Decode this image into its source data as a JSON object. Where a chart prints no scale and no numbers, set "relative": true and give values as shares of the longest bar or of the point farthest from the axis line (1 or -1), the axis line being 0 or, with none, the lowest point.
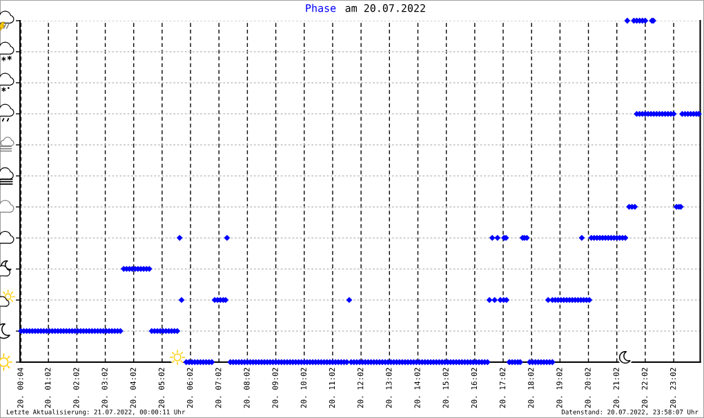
{
  "chart_data": {
    "type": "scatter",
    "title": "am 20.07.2022",
    "relative": true,
    "grid": true,
    "marker": "diamond",
    "xlim": [
      "2022-07-20T00:02",
      "2022-07-20T23:58"
    ],
    "xticks": [
      {
        "value": "2022-07-20T00:04",
        "label": "20. 00:04"
      },
      {
        "value": "2022-07-20T01:02",
        "label": "20. 01:02"
      },
      {
        "value": "2022-07-20T02:02",
        "label": "20. 02:02"
      },
      {
        "value": "2022-07-20T03:02",
        "label": "20. 03:02"
      },
      {
        "value": "2022-07-20T04:02",
        "label": "20. 04:02"
      },
      {
        "value": "2022-07-20T05:02",
        "label": "20. 05:02"
      },
      {
        "value": "2022-07-20T06:02",
        "label": "20. 06:02"
      },
      {
        "value": "2022-07-20T07:02",
        "label": "20. 07:02"
      },
      {
        "value": "2022-07-20T08:02",
        "label": "20. 08:02"
      },
      {
        "value": "2022-07-20T09:02",
        "label": "20. 09:02"
      },
      {
        "value": "2022-07-20T10:02",
        "label": "20. 10:02"
      },
      {
        "value": "2022-07-20T11:02",
        "label": "20. 11:02"
      },
      {
        "value": "2022-07-20T12:02",
        "label": "20. 12:02"
      },
      {
        "value": "2022-07-20T13:02",
        "label": "20. 13:02"
      },
      {
        "value": "2022-07-20T14:02",
        "label": "20. 14:02"
      },
      {
        "value": "2022-07-20T15:02",
        "label": "20. 15:02"
      },
      {
        "value": "2022-07-20T16:02",
        "label": "20. 16:02"
      },
      {
        "value": "2022-07-20T17:02",
        "label": "20. 17:02"
      },
      {
        "value": "2022-07-20T18:02",
        "label": "20. 18:02"
      },
      {
        "value": "2022-07-20T19:02",
        "label": "20. 19:02"
      },
      {
        "value": "2022-07-20T20:02",
        "label": "20. 20:02"
      },
      {
        "value": "2022-07-20T21:02",
        "label": "20. 21:02"
      },
      {
        "value": "2022-07-20T22:02",
        "label": "20. 22:02"
      },
      {
        "value": "2022-07-20T23:02",
        "label": "20. 23:02"
      }
    ],
    "series": [
      {
        "name": "Phase",
        "color": "#0000ff",
        "x": [
          "2022-07-20T00:04",
          "2022-07-20T00:10",
          "2022-07-20T00:16",
          "2022-07-20T00:22",
          "2022-07-20T00:28",
          "2022-07-20T00:34",
          "2022-07-20T00:40",
          "2022-07-20T00:46",
          "2022-07-20T00:52",
          "2022-07-20T00:58",
          "2022-07-20T01:04",
          "2022-07-20T01:10",
          "2022-07-20T01:16",
          "2022-07-20T01:22",
          "2022-07-20T01:28",
          "2022-07-20T01:34",
          "2022-07-20T01:40",
          "2022-07-20T01:46",
          "2022-07-20T01:52",
          "2022-07-20T01:58",
          "2022-07-20T02:04",
          "2022-07-20T02:10",
          "2022-07-20T02:16",
          "2022-07-20T02:22",
          "2022-07-20T02:28",
          "2022-07-20T02:34",
          "2022-07-20T02:40",
          "2022-07-20T02:46",
          "2022-07-20T02:52",
          "2022-07-20T02:58",
          "2022-07-20T03:04",
          "2022-07-20T03:10",
          "2022-07-20T03:16",
          "2022-07-20T03:22",
          "2022-07-20T03:28",
          "2022-07-20T03:34",
          "2022-07-20T03:41",
          "2022-07-20T03:47",
          "2022-07-20T03:53",
          "2022-07-20T03:59",
          "2022-07-20T04:05",
          "2022-07-20T04:11",
          "2022-07-20T04:17",
          "2022-07-20T04:23",
          "2022-07-20T04:29",
          "2022-07-20T04:35",
          "2022-07-20T04:40",
          "2022-07-20T04:46",
          "2022-07-20T04:52",
          "2022-07-20T04:58",
          "2022-07-20T05:04",
          "2022-07-20T05:10",
          "2022-07-20T05:16",
          "2022-07-20T05:22",
          "2022-07-20T05:28",
          "2022-07-20T05:34",
          "2022-07-20T05:39",
          "2022-07-20T05:43",
          "2022-07-20T05:53",
          "2022-07-20T05:59",
          "2022-07-20T06:05",
          "2022-07-20T06:11",
          "2022-07-20T06:17",
          "2022-07-20T06:23",
          "2022-07-20T06:29",
          "2022-07-20T06:35",
          "2022-07-20T06:41",
          "2022-07-20T06:47",
          "2022-07-20T06:53",
          "2022-07-20T06:59",
          "2022-07-20T07:05",
          "2022-07-20T07:11",
          "2022-07-20T07:16",
          "2022-07-20T07:19",
          "2022-07-20T07:26",
          "2022-07-20T07:32",
          "2022-07-20T07:38",
          "2022-07-20T07:44",
          "2022-07-20T07:50",
          "2022-07-20T07:56",
          "2022-07-20T08:02",
          "2022-07-20T08:08",
          "2022-07-20T08:14",
          "2022-07-20T08:20",
          "2022-07-20T08:26",
          "2022-07-20T08:32",
          "2022-07-20T08:38",
          "2022-07-20T08:44",
          "2022-07-20T08:50",
          "2022-07-20T08:56",
          "2022-07-20T09:02",
          "2022-07-20T09:08",
          "2022-07-20T09:14",
          "2022-07-20T09:20",
          "2022-07-20T09:26",
          "2022-07-20T09:32",
          "2022-07-20T09:38",
          "2022-07-20T09:44",
          "2022-07-20T09:50",
          "2022-07-20T09:56",
          "2022-07-20T10:02",
          "2022-07-20T10:08",
          "2022-07-20T10:14",
          "2022-07-20T10:20",
          "2022-07-20T10:26",
          "2022-07-20T10:32",
          "2022-07-20T10:38",
          "2022-07-20T10:44",
          "2022-07-20T10:50",
          "2022-07-20T10:56",
          "2022-07-20T11:02",
          "2022-07-20T11:08",
          "2022-07-20T11:14",
          "2022-07-20T11:20",
          "2022-07-20T11:26",
          "2022-07-20T11:32",
          "2022-07-20T11:37",
          "2022-07-20T11:41",
          "2022-07-20T11:47",
          "2022-07-20T11:53",
          "2022-07-20T11:59",
          "2022-07-20T12:05",
          "2022-07-20T12:11",
          "2022-07-20T12:17",
          "2022-07-20T12:23",
          "2022-07-20T12:29",
          "2022-07-20T12:35",
          "2022-07-20T12:41",
          "2022-07-20T12:47",
          "2022-07-20T12:53",
          "2022-07-20T12:59",
          "2022-07-20T13:05",
          "2022-07-20T13:11",
          "2022-07-20T13:17",
          "2022-07-20T13:23",
          "2022-07-20T13:29",
          "2022-07-20T13:35",
          "2022-07-20T13:41",
          "2022-07-20T13:47",
          "2022-07-20T13:53",
          "2022-07-20T13:59",
          "2022-07-20T14:05",
          "2022-07-20T14:11",
          "2022-07-20T14:17",
          "2022-07-20T14:23",
          "2022-07-20T14:29",
          "2022-07-20T14:35",
          "2022-07-20T14:41",
          "2022-07-20T14:47",
          "2022-07-20T14:53",
          "2022-07-20T14:59",
          "2022-07-20T15:05",
          "2022-07-20T15:11",
          "2022-07-20T15:17",
          "2022-07-20T15:23",
          "2022-07-20T15:29",
          "2022-07-20T15:35",
          "2022-07-20T15:41",
          "2022-07-20T15:47",
          "2022-07-20T15:53",
          "2022-07-20T15:59",
          "2022-07-20T16:05",
          "2022-07-20T16:11",
          "2022-07-20T16:17",
          "2022-07-20T16:23",
          "2022-07-20T16:29",
          "2022-07-20T16:33",
          "2022-07-20T16:39",
          "2022-07-20T16:44",
          "2022-07-20T16:50",
          "2022-07-20T16:56",
          "2022-07-20T17:03",
          "2022-07-20T17:04",
          "2022-07-20T17:08",
          "2022-07-20T17:09",
          "2022-07-20T17:15",
          "2022-07-20T17:21",
          "2022-07-20T17:27",
          "2022-07-20T17:33",
          "2022-07-20T17:38",
          "2022-07-20T17:43",
          "2022-07-20T17:47",
          "2022-07-20T17:52",
          "2022-07-20T17:58",
          "2022-07-20T18:04",
          "2022-07-20T18:10",
          "2022-07-20T18:16",
          "2022-07-20T18:22",
          "2022-07-20T18:28",
          "2022-07-20T18:34",
          "2022-07-20T18:40",
          "2022-07-20T18:46",
          "2022-07-20T18:37",
          "2022-07-20T18:46",
          "2022-07-20T18:52",
          "2022-07-20T18:58",
          "2022-07-20T19:04",
          "2022-07-20T19:10",
          "2022-07-20T19:16",
          "2022-07-20T19:22",
          "2022-07-20T19:28",
          "2022-07-20T19:34",
          "2022-07-20T19:40",
          "2022-07-20T19:46",
          "2022-07-20T19:52",
          "2022-07-20T19:58",
          "2022-07-20T20:04",
          "2022-07-20T19:48",
          "2022-07-20T20:08",
          "2022-07-20T20:14",
          "2022-07-20T20:20",
          "2022-07-20T20:26",
          "2022-07-20T20:32",
          "2022-07-20T20:38",
          "2022-07-20T20:44",
          "2022-07-20T20:50",
          "2022-07-20T20:56",
          "2022-07-20T21:02",
          "2022-07-20T21:08",
          "2022-07-20T21:14",
          "2022-07-20T21:20",
          "2022-07-20T21:24",
          "2022-07-20T21:28",
          "2022-07-20T21:34",
          "2022-07-20T21:40",
          "2022-07-20T21:38",
          "2022-07-20T21:44",
          "2022-07-20T21:50",
          "2022-07-20T21:56",
          "2022-07-20T22:02",
          "2022-07-20T22:16",
          "2022-07-20T22:19",
          "2022-07-20T21:44",
          "2022-07-20T21:50",
          "2022-07-20T21:56",
          "2022-07-20T22:02",
          "2022-07-20T22:08",
          "2022-07-20T22:14",
          "2022-07-20T22:20",
          "2022-07-20T22:26",
          "2022-07-20T22:32",
          "2022-07-20T22:38",
          "2022-07-20T22:44",
          "2022-07-20T22:50",
          "2022-07-20T22:56",
          "2022-07-20T23:02",
          "2022-07-20T23:08",
          "2022-07-20T23:13",
          "2022-07-20T23:17",
          "2022-07-20T23:20",
          "2022-07-20T23:26",
          "2022-07-20T23:32",
          "2022-07-20T23:38",
          "2022-07-20T23:44",
          "2022-07-20T23:50",
          "2022-07-20T23:55"
        ],
        "values": [
          0.091,
          0.091,
          0.091,
          0.091,
          0.091,
          0.091,
          0.091,
          0.091,
          0.091,
          0.091,
          0.091,
          0.091,
          0.091,
          0.091,
          0.091,
          0.091,
          0.091,
          0.091,
          0.091,
          0.091,
          0.091,
          0.091,
          0.091,
          0.091,
          0.091,
          0.091,
          0.091,
          0.091,
          0.091,
          0.091,
          0.091,
          0.091,
          0.091,
          0.091,
          0.091,
          0.091,
          0.273,
          0.273,
          0.273,
          0.273,
          0.273,
          0.273,
          0.273,
          0.273,
          0.273,
          0.273,
          0.091,
          0.091,
          0.091,
          0.091,
          0.091,
          0.091,
          0.091,
          0.091,
          0.091,
          0.091,
          0.364,
          0.182,
          0,
          0,
          0,
          0,
          0,
          0,
          0,
          0,
          0,
          0,
          0.182,
          0.182,
          0.182,
          0.182,
          0.182,
          0.364,
          0,
          0,
          0,
          0,
          0,
          0,
          0,
          0,
          0,
          0,
          0,
          0,
          0,
          0,
          0,
          0,
          0,
          0,
          0,
          0,
          0,
          0,
          0,
          0,
          0,
          0,
          0,
          0,
          0,
          0,
          0,
          0,
          0,
          0,
          0,
          0,
          0,
          0,
          0,
          0,
          0,
          0,
          0.182,
          0,
          0,
          0,
          0,
          0,
          0,
          0,
          0,
          0,
          0,
          0,
          0,
          0,
          0,
          0,
          0,
          0,
          0,
          0,
          0,
          0,
          0,
          0,
          0,
          0,
          0,
          0,
          0,
          0,
          0,
          0,
          0,
          0,
          0,
          0,
          0,
          0,
          0,
          0,
          0,
          0,
          0,
          0,
          0,
          0,
          0,
          0,
          0,
          0,
          0.182,
          0.364,
          0.182,
          0.364,
          0.182,
          0.182,
          0.364,
          0.364,
          0.182,
          0,
          0,
          0,
          0,
          0,
          0.364,
          0.364,
          0.364,
          0,
          0,
          0,
          0,
          0,
          0,
          0,
          0,
          0,
          0.182,
          0.182,
          0.182,
          0.182,
          0.182,
          0.182,
          0.182,
          0.182,
          0.182,
          0.182,
          0.182,
          0.182,
          0.182,
          0.182,
          0.182,
          0.364,
          0.364,
          0.364,
          0.364,
          0.364,
          0.364,
          0.364,
          0.364,
          0.364,
          0.364,
          0.364,
          0.364,
          0.364,
          0.364,
          1,
          0.455,
          0.455,
          0.455,
          1,
          1,
          1,
          1,
          1,
          1,
          1,
          0.727,
          0.727,
          0.727,
          0.727,
          0.727,
          0.727,
          0.727,
          0.727,
          0.727,
          0.727,
          0.727,
          0.727,
          0.727,
          0.727,
          0.455,
          0.455,
          0.455,
          0.727,
          0.727,
          0.727,
          0.727,
          0.727,
          0.727,
          0.727
        ]
      }
    ],
    "annotations": [
      "Letzte Aktualisierung: 21.07.2022, 00:00:11 Uhr",
      "Datenstand: 20.07.2022, 23:58:07 Uhr"
    ]
  }
}
